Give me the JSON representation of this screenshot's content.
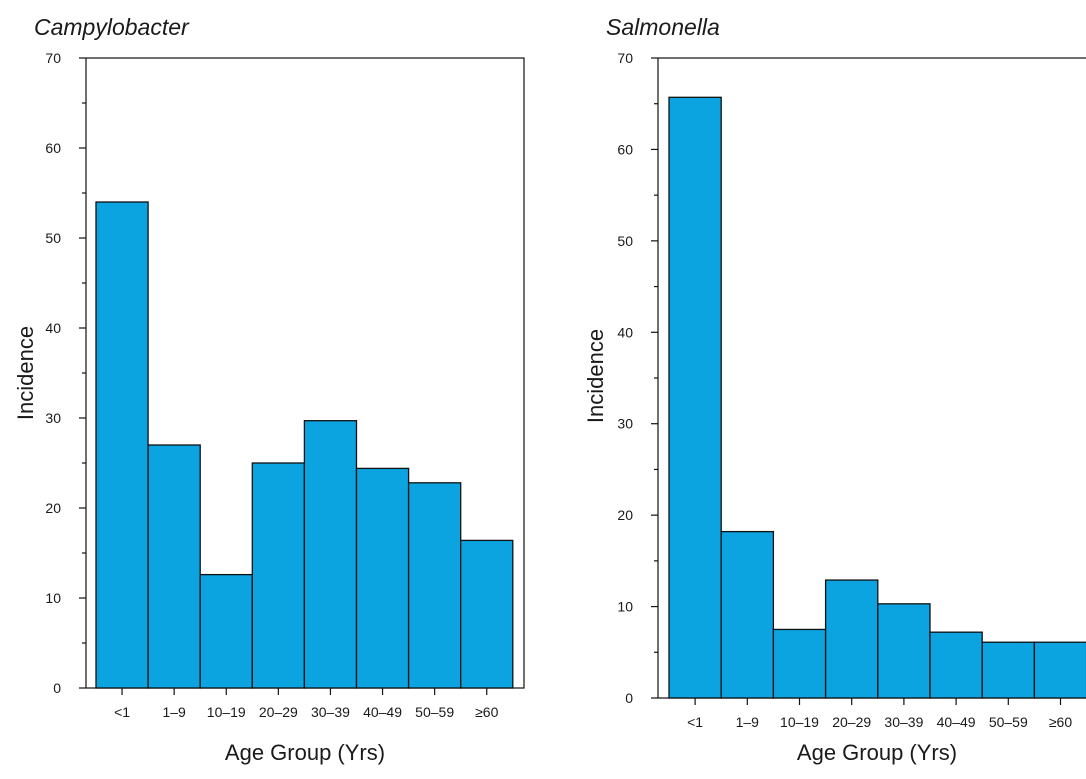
{
  "chart_data": [
    {
      "type": "bar",
      "title": "Campylobacter",
      "xlabel": "Age Group (Yrs)",
      "ylabel": "Incidence",
      "categories": [
        "<1",
        "1–9",
        "10–19",
        "20–29",
        "30–39",
        "40–49",
        "50–59",
        "≥60"
      ],
      "values": [
        54,
        27,
        12.6,
        25,
        29.7,
        24.4,
        22.8,
        16.4
      ],
      "ylim": [
        0,
        70
      ],
      "yticks": [
        0,
        10,
        20,
        30,
        40,
        50,
        60,
        70
      ],
      "grid": false,
      "colors": {
        "bar": "#0ba3e0",
        "edge": "#111111"
      }
    },
    {
      "type": "bar",
      "title": "Salmonella",
      "xlabel": "Age Group (Yrs)",
      "ylabel": "Incidence",
      "categories": [
        "<1",
        "1–9",
        "10–19",
        "20–29",
        "30–39",
        "40–49",
        "50–59",
        "≥60"
      ],
      "values": [
        65.7,
        18.2,
        7.5,
        12.9,
        10.3,
        7.2,
        6.1,
        6.1
      ],
      "ylim": [
        0,
        70
      ],
      "yticks": [
        0,
        10,
        20,
        30,
        40,
        50,
        60,
        70
      ],
      "grid": false,
      "colors": {
        "bar": "#0ba3e0",
        "edge": "#111111"
      }
    }
  ]
}
